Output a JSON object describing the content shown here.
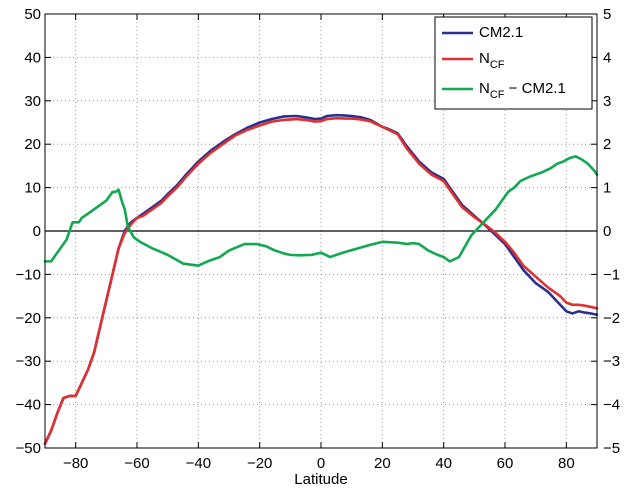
{
  "chart_data": {
    "type": "line",
    "xlabel": "Latitude",
    "ylabel": "",
    "xlim": [
      -90,
      90
    ],
    "ylim": [
      -50,
      50
    ],
    "ylim_right": [
      -5,
      5
    ],
    "xticks": [
      -80,
      -60,
      -40,
      -20,
      0,
      20,
      40,
      60,
      80
    ],
    "xtick_labels": [
      "−80",
      "−60",
      "−40",
      "−20",
      "0",
      "20",
      "40",
      "60",
      "80"
    ],
    "yticks": [
      -50,
      -40,
      -30,
      -20,
      -10,
      0,
      10,
      20,
      30,
      40,
      50
    ],
    "ytick_labels": [
      "−50",
      "−40",
      "−30",
      "−20",
      "−10",
      "0",
      "10",
      "20",
      "30",
      "40",
      "50"
    ],
    "yticks_right": [
      -5,
      -4,
      -3,
      -2,
      -1,
      0,
      1,
      2,
      3,
      4,
      5
    ],
    "ytick_right_labels": [
      "−5",
      "−4",
      "−3",
      "−2",
      "−1",
      "0",
      "1",
      "2",
      "3",
      "4",
      "5"
    ],
    "grid": true,
    "zero_line": true,
    "legend_position": "top-right",
    "legend": [
      {
        "main": "CM2.1",
        "sub": "",
        "tail": ""
      },
      {
        "main": "N",
        "sub": "CF",
        "tail": ""
      },
      {
        "main": "N",
        "sub": "CF",
        "tail": " − CM2.1"
      }
    ],
    "series": [
      {
        "name": "CM2.1",
        "color": "#2b2f8f",
        "axis": "left",
        "x": [
          -90,
          -88,
          -86,
          -84,
          -82,
          -80,
          -78,
          -76,
          -74,
          -72,
          -70,
          -68,
          -66,
          -64,
          -62,
          -60,
          -58,
          -55,
          -52,
          -50,
          -47,
          -44,
          -40,
          -36,
          -32,
          -28,
          -24,
          -20,
          -16,
          -12,
          -8,
          -5,
          -2,
          0,
          2,
          5,
          8,
          10,
          13,
          16,
          20,
          22,
          25,
          28,
          32,
          36,
          40,
          43,
          46,
          50,
          54,
          57,
          60,
          63,
          66,
          70,
          74,
          78,
          80,
          82,
          84,
          86,
          88,
          90
        ],
        "values": [
          -49,
          -46,
          -42,
          -38.5,
          -38,
          -38,
          -35,
          -32,
          -28,
          -22,
          -16,
          -10,
          -4,
          0,
          2,
          3,
          4,
          5.5,
          7,
          8.5,
          10.5,
          13,
          16,
          18.5,
          20.5,
          22.3,
          23.8,
          25,
          25.8,
          26.4,
          26.5,
          26.2,
          25.8,
          25.9,
          26.5,
          26.7,
          26.6,
          26.5,
          26.2,
          25.6,
          24,
          23.5,
          22.5,
          19.5,
          16,
          13.5,
          12,
          9,
          6,
          3.5,
          1,
          -1,
          -3,
          -6,
          -9,
          -12,
          -14,
          -17,
          -18.5,
          -19,
          -18.5,
          -18.8,
          -19,
          -19.3
        ]
      },
      {
        "name": "NCF",
        "color": "#e03030",
        "axis": "left",
        "x": [
          -90,
          -88,
          -86,
          -84,
          -82,
          -80,
          -78,
          -76,
          -74,
          -72,
          -70,
          -68,
          -66,
          -64,
          -62,
          -60,
          -58,
          -55,
          -52,
          -50,
          -47,
          -44,
          -40,
          -36,
          -32,
          -28,
          -24,
          -20,
          -16,
          -12,
          -8,
          -5,
          -2,
          0,
          2,
          5,
          8,
          10,
          13,
          16,
          20,
          22,
          25,
          28,
          32,
          36,
          40,
          43,
          46,
          50,
          54,
          57,
          60,
          63,
          66,
          70,
          74,
          78,
          80,
          82,
          84,
          86,
          88,
          90
        ],
        "values": [
          -49,
          -46,
          -42,
          -38.5,
          -38,
          -38,
          -35,
          -32,
          -28,
          -22,
          -16,
          -10,
          -4,
          -0.5,
          1.5,
          3,
          3.5,
          5,
          6.5,
          8,
          10,
          12.5,
          15.5,
          18,
          20,
          22,
          23.3,
          24.3,
          25.2,
          25.6,
          25.8,
          25.6,
          25.2,
          25.3,
          25.8,
          26,
          25.9,
          25.9,
          25.7,
          25.3,
          24,
          23.3,
          22.3,
          19,
          15.5,
          13,
          11.5,
          8.5,
          5.5,
          3.2,
          1.2,
          -0.5,
          -2.5,
          -5,
          -8,
          -10.5,
          -13,
          -15,
          -16.5,
          -17,
          -17,
          -17.2,
          -17.5,
          -17.8
        ]
      },
      {
        "name": "NCF − CM2.1",
        "color": "#12a850",
        "axis": "right",
        "x": [
          -90,
          -89,
          -88,
          -87,
          -85,
          -83,
          -81,
          -79,
          -78,
          -76,
          -74,
          -72,
          -70,
          -68,
          -67,
          -66,
          -65,
          -64,
          -63,
          -61,
          -59,
          -55,
          -50,
          -45,
          -40,
          -37,
          -33,
          -30,
          -25,
          -21,
          -18,
          -15,
          -12,
          -10,
          -7,
          -3,
          0,
          3,
          5,
          8,
          12,
          16,
          20,
          25,
          28,
          30,
          32,
          35,
          38,
          40,
          42,
          45,
          47,
          49,
          51,
          53,
          55,
          57,
          59,
          61,
          63,
          65,
          68,
          70,
          72,
          75,
          77,
          79,
          81,
          83,
          85,
          87,
          89,
          90
        ],
        "values": [
          -0.7,
          -0.7,
          -0.7,
          -0.6,
          -0.4,
          -0.2,
          0.2,
          0.2,
          0.3,
          0.4,
          0.5,
          0.6,
          0.7,
          0.9,
          0.9,
          0.95,
          0.7,
          0.5,
          0.1,
          -0.15,
          -0.25,
          -0.4,
          -0.55,
          -0.75,
          -0.8,
          -0.7,
          -0.6,
          -0.45,
          -0.3,
          -0.3,
          -0.35,
          -0.45,
          -0.52,
          -0.55,
          -0.56,
          -0.55,
          -0.5,
          -0.6,
          -0.55,
          -0.48,
          -0.4,
          -0.32,
          -0.25,
          -0.27,
          -0.3,
          -0.28,
          -0.3,
          -0.45,
          -0.55,
          -0.6,
          -0.7,
          -0.6,
          -0.35,
          -0.1,
          0.05,
          0.2,
          0.35,
          0.5,
          0.7,
          0.9,
          1.0,
          1.15,
          1.25,
          1.3,
          1.35,
          1.45,
          1.55,
          1.6,
          1.68,
          1.72,
          1.65,
          1.55,
          1.4,
          1.3
        ]
      }
    ]
  }
}
